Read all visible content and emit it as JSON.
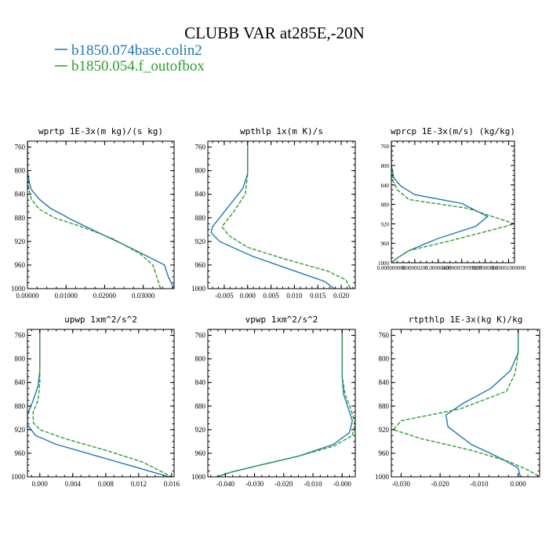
{
  "figure": {
    "title": "CLUBB VAR at285E,-20N",
    "legend": [
      {
        "label": "b1850.074base.colin2",
        "color": "#1f77b4",
        "dash": "solid"
      },
      {
        "label": "b1850.054.f_outofbox",
        "color": "#2ca02c",
        "dash": "dashed"
      }
    ]
  },
  "chart_data": [
    {
      "type": "line",
      "title": "wprtp  1E-3x(m kg)/(s kg)",
      "xlim": [
        0.0,
        0.038
      ],
      "ylim": [
        1000,
        750
      ],
      "xticks": [
        0.0,
        0.01,
        0.02,
        0.03
      ],
      "xtick_labels": [
        "0.00000",
        "0.01000",
        "0.02000",
        "0.03000"
      ],
      "yticks": [
        760,
        800,
        840,
        880,
        920,
        960,
        1000
      ],
      "ytick_labels": [
        "760",
        "800",
        "840",
        "880",
        "920",
        "960",
        "1000"
      ],
      "series": [
        {
          "name": "b1850.074base.colin2",
          "x": [
            0.0,
            0.0,
            0.0005,
            0.001,
            0.003,
            0.006,
            0.012,
            0.02,
            0.028,
            0.0355,
            0.0365,
            0.038
          ],
          "y": [
            750,
            800,
            820,
            832,
            848,
            864,
            885,
            910,
            935,
            960,
            980,
            1000
          ]
        },
        {
          "name": "b1850.054.f_outofbox",
          "x": [
            0.0,
            0.0,
            0.0003,
            0.001,
            0.003,
            0.007,
            0.014,
            0.022,
            0.029,
            0.0325,
            0.0335,
            0.0345
          ],
          "y": [
            750,
            800,
            830,
            848,
            865,
            880,
            895,
            915,
            940,
            960,
            980,
            1000
          ]
        }
      ]
    },
    {
      "type": "line",
      "title": "wpthlp  1x(m K)/s",
      "xlim": [
        -0.0085,
        0.023
      ],
      "ylim": [
        1000,
        750
      ],
      "xticks": [
        -0.005,
        0.0,
        0.005,
        0.01,
        0.015,
        0.02
      ],
      "xtick_labels": [
        "-0.005",
        "0.000",
        "0.005",
        "0.010",
        "0.015",
        "0.020"
      ],
      "yticks": [
        760,
        800,
        840,
        880,
        920,
        960,
        1000
      ],
      "ytick_labels": [
        "760",
        "800",
        "840",
        "880",
        "920",
        "960",
        "1000"
      ],
      "series": [
        {
          "name": "b1850.074base.colin2",
          "x": [
            0.0,
            0.0,
            -0.001,
            -0.004,
            -0.0075,
            -0.0078,
            -0.006,
            0.001,
            0.01,
            0.0165,
            0.0185
          ],
          "y": [
            750,
            805,
            830,
            860,
            895,
            905,
            920,
            945,
            970,
            988,
            1000
          ]
        },
        {
          "name": "b1850.054.f_outofbox",
          "x": [
            0.0,
            0.0,
            -0.0005,
            -0.003,
            -0.0055,
            -0.004,
            0.0,
            0.008,
            0.017,
            0.021,
            0.022
          ],
          "y": [
            750,
            805,
            840,
            870,
            895,
            910,
            930,
            950,
            970,
            985,
            1000
          ]
        }
      ]
    },
    {
      "type": "line",
      "title": "wprcp  1E-3x(m/s) (kg/kg)",
      "xlim": [
        0.0,
        1.05e-05
      ],
      "ylim": [
        1000,
        750
      ],
      "xticks": [
        0.0,
        2e-06,
        4e-06,
        6e-06,
        8e-06,
        1e-05
      ],
      "xtick_labels": [
        "0.000000000",
        "0.00000200",
        "0.00000400",
        "0.0000059999997",
        "0.00000800",
        "0.00001000000"
      ],
      "yticks": [
        760,
        800,
        840,
        880,
        920,
        960,
        1000
      ],
      "ytick_labels": [
        "760",
        "800",
        "840",
        "880",
        "920",
        "960",
        "1000"
      ],
      "series": [
        {
          "name": "b1850.074base.colin2",
          "x": [
            0.0,
            0.0,
            2e-07,
            8e-07,
            2e-06,
            6e-06,
            8.2e-06,
            7.2e-06,
            4e-06,
            1.5e-06,
            4e-07,
            0.0
          ],
          "y": [
            750,
            800,
            825,
            842,
            860,
            878,
            905,
            925,
            950,
            975,
            992,
            1000
          ]
        },
        {
          "name": "b1850.054.f_outofbox",
          "x": [
            0.0,
            0.0,
            1e-07,
            5e-07,
            1.5e-06,
            6.5e-06,
            1.05e-05,
            8.2e-06,
            5e-06,
            1.5e-06,
            4e-07,
            0.0
          ],
          "y": [
            750,
            800,
            830,
            850,
            870,
            888,
            920,
            935,
            955,
            975,
            992,
            1000
          ]
        }
      ]
    },
    {
      "type": "line",
      "title": "upwp  1xm^2/s^2",
      "xlim": [
        -0.0015,
        0.0163
      ],
      "ylim": [
        1000,
        750
      ],
      "xticks": [
        0.0,
        0.004,
        0.008,
        0.012,
        0.016
      ],
      "xtick_labels": [
        "0.000",
        "0.004",
        "0.008",
        "0.012",
        "0.016"
      ],
      "yticks": [
        760,
        800,
        840,
        880,
        920,
        960,
        1000
      ],
      "ytick_labels": [
        "760",
        "800",
        "840",
        "880",
        "920",
        "960",
        "1000"
      ],
      "series": [
        {
          "name": "b1850.074base.colin2",
          "x": [
            0.0,
            0.0,
            -0.0002,
            -0.0008,
            -0.0015,
            -0.0015,
            -0.0005,
            0.002,
            0.007,
            0.012,
            0.0157
          ],
          "y": [
            750,
            820,
            845,
            870,
            895,
            912,
            930,
            945,
            965,
            985,
            1000
          ]
        },
        {
          "name": "b1850.054.f_outofbox",
          "x": [
            0.0,
            0.0,
            -0.0002,
            -0.0008,
            -0.0008,
            0.0,
            0.003,
            0.008,
            0.0125,
            0.016
          ],
          "y": [
            750,
            840,
            870,
            890,
            908,
            920,
            935,
            955,
            975,
            1000
          ]
        }
      ]
    },
    {
      "type": "line",
      "title": "vpwp  1xm^2/s^2",
      "xlim": [
        -0.046,
        0.0045
      ],
      "ylim": [
        1000,
        750
      ],
      "xticks": [
        -0.04,
        -0.03,
        -0.02,
        -0.01,
        0.0
      ],
      "xtick_labels": [
        "-0.040",
        "-0.030",
        "-0.020",
        "-0.010",
        "-0.000"
      ],
      "yticks": [
        760,
        800,
        840,
        880,
        920,
        960,
        1000
      ],
      "ytick_labels": [
        "760",
        "800",
        "840",
        "880",
        "920",
        "960",
        "1000"
      ],
      "series": [
        {
          "name": "b1850.074base.colin2",
          "x": [
            0.0,
            0.0,
            0.0005,
            0.0022,
            0.0035,
            0.0025,
            -0.003,
            -0.015,
            -0.028,
            -0.038,
            -0.043
          ],
          "y": [
            750,
            830,
            860,
            885,
            905,
            925,
            945,
            965,
            980,
            992,
            1000
          ]
        },
        {
          "name": "b1850.054.f_outofbox",
          "x": [
            0.0,
            0.0,
            0.001,
            0.003,
            0.0045,
            0.0035,
            -0.003,
            -0.015,
            -0.028,
            -0.038,
            -0.043
          ],
          "y": [
            750,
            830,
            860,
            885,
            910,
            930,
            948,
            965,
            980,
            992,
            1000
          ]
        }
      ]
    },
    {
      "type": "line",
      "title": "rtpthlp  1E-3x(kg K)/kg",
      "xlim": [
        -0.0325,
        0.0055
      ],
      "ylim": [
        1000,
        750
      ],
      "xticks": [
        -0.03,
        -0.02,
        -0.01,
        0.0
      ],
      "xtick_labels": [
        "-0.030",
        "-0.020",
        "-0.010",
        "0.000"
      ],
      "yticks": [
        760,
        800,
        840,
        880,
        920,
        960,
        1000
      ],
      "ytick_labels": [
        "760",
        "800",
        "840",
        "880",
        "920",
        "960",
        "1000"
      ],
      "series": [
        {
          "name": "b1850.074base.colin2",
          "x": [
            0.0,
            0.0,
            -0.002,
            -0.007,
            -0.014,
            -0.0185,
            -0.018,
            -0.012,
            -0.004,
            0.0,
            0.0005,
            0.001
          ],
          "y": [
            750,
            790,
            820,
            850,
            875,
            895,
            915,
            945,
            970,
            985,
            998,
            1000
          ]
        },
        {
          "name": "b1850.054.f_outofbox",
          "x": [
            0.0,
            0.0,
            -0.0008,
            -0.003,
            -0.015,
            -0.03,
            -0.032,
            -0.025,
            -0.012,
            -0.002,
            0.003,
            0.0055
          ],
          "y": [
            750,
            790,
            825,
            855,
            885,
            905,
            920,
            935,
            955,
            975,
            990,
            1000
          ]
        }
      ]
    }
  ]
}
